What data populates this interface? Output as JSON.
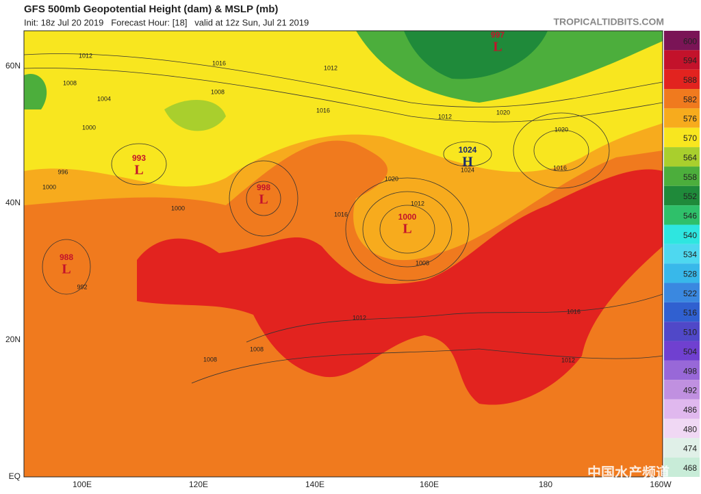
{
  "header": {
    "title": "GFS 500mb Geopotential Height (dam) & MSLP (mb)",
    "subtitle": "Init: 18z Jul 20 2019   Forecast Hour: [18]   valid at 12z Sun, Jul 21 2019",
    "source": "TROPICALTIDBITS.COM"
  },
  "legend": [
    {
      "value": 600,
      "color": "#7a1456"
    },
    {
      "value": 594,
      "color": "#c3122b"
    },
    {
      "value": 588,
      "color": "#e2231f"
    },
    {
      "value": 582,
      "color": "#f07a1e"
    },
    {
      "value": 576,
      "color": "#f7ab1d"
    },
    {
      "value": 570,
      "color": "#f8e61f"
    },
    {
      "value": 564,
      "color": "#a9cf2d"
    },
    {
      "value": 558,
      "color": "#4cae3c"
    },
    {
      "value": 552,
      "color": "#1f8a3a"
    },
    {
      "value": 546,
      "color": "#2fc06a"
    },
    {
      "value": 540,
      "color": "#2ee6e0"
    },
    {
      "value": 534,
      "color": "#4ed8f0"
    },
    {
      "value": 528,
      "color": "#38b8ea"
    },
    {
      "value": 522,
      "color": "#3a88e0"
    },
    {
      "value": 516,
      "color": "#3060d0"
    },
    {
      "value": 510,
      "color": "#5048c8"
    },
    {
      "value": 504,
      "color": "#7040d0"
    },
    {
      "value": 498,
      "color": "#9868d8"
    },
    {
      "value": 492,
      "color": "#c090e0"
    },
    {
      "value": 486,
      "color": "#e0b8ee"
    },
    {
      "value": 480,
      "color": "#f0d8f4"
    },
    {
      "value": 474,
      "color": "#e0f0e8"
    },
    {
      "value": 468,
      "color": "#c8ecd8"
    }
  ],
  "lat_labels": [
    "60N",
    "40N",
    "20N",
    "EQ"
  ],
  "lon_labels": [
    "100E",
    "120E",
    "140E",
    "160E",
    "180",
    "160W"
  ],
  "centers": [
    {
      "type": "L",
      "pressure": 997
    },
    {
      "type": "L",
      "pressure": 993
    },
    {
      "type": "L",
      "pressure": 998
    },
    {
      "type": "L",
      "pressure": 1000
    },
    {
      "type": "L",
      "pressure": 988
    },
    {
      "type": "H",
      "pressure": 1024
    }
  ],
  "isobar_labels": [
    1012,
    1016,
    1008,
    1004,
    1000,
    996,
    1000,
    1008,
    1012,
    1016,
    1020,
    1024,
    1020,
    1016,
    1012,
    1008,
    1016,
    1012,
    1012,
    1008,
    1020,
    1016,
    1012,
    1008,
    992,
    1000
  ],
  "watermark": "中国水产频道"
}
